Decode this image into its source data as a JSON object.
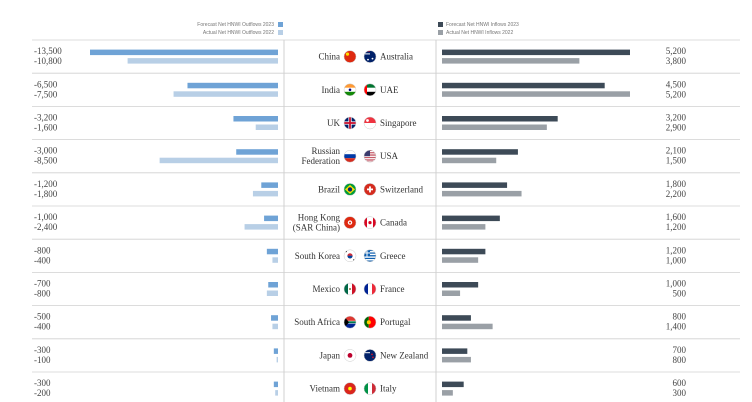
{
  "legend": {
    "outflow_2023": "Forecast Net HNWI Outflows 2023",
    "outflow_2022": "Actual Net HNWI Outflows 2022",
    "inflow_2023": "Forecast Net HNWI Inflows 2023",
    "inflow_2022": "Actual Net HNWI Inflows 2022"
  },
  "colors": {
    "outflow_2023": "#6fa3d6",
    "outflow_2022": "#b8cfe6",
    "inflow_2023": "#3d4a57",
    "inflow_2022": "#9aa0a6",
    "divider": "#d0d0d0"
  },
  "chart_data": {
    "type": "bar",
    "left": {
      "countries": [
        "China",
        "India",
        "UK",
        "Russian\nFederation",
        "Brazil",
        "Hong Kong\n(SAR China)",
        "South Korea",
        "Mexico",
        "South Africa",
        "Japan",
        "Vietnam"
      ],
      "flags": [
        "flag-china-icon",
        "flag-india-icon",
        "flag-uk-icon",
        "flag-russia-icon",
        "flag-brazil-icon",
        "flag-hongkong-icon",
        "flag-southkorea-icon",
        "flag-mexico-icon",
        "flag-southafrica-icon",
        "flag-japan-icon",
        "flag-vietnam-icon"
      ],
      "series": [
        {
          "name": "Forecast Net HNWI Outflows 2023",
          "values": [
            -13500,
            -6500,
            -3200,
            -3000,
            -1200,
            -1000,
            -800,
            -700,
            -500,
            -300,
            -300
          ]
        },
        {
          "name": "Actual Net HNWI Outflows 2022",
          "values": [
            -10800,
            -7500,
            -1600,
            -8500,
            -1800,
            -2400,
            -400,
            -800,
            -400,
            -100,
            -200
          ]
        }
      ],
      "labels_2023": [
        "-13,500",
        "-6,500",
        "-3,200",
        "-3,000",
        "-1,200",
        "-1,000",
        "-800",
        "-700",
        "-500",
        "-300",
        "-300"
      ],
      "labels_2022": [
        "-10,800",
        "-7,500",
        "-1,600",
        "-8,500",
        "-1,800",
        "-2,400",
        "-400",
        "-800",
        "-400",
        "-100",
        "-200"
      ]
    },
    "right": {
      "countries": [
        "Australia",
        "UAE",
        "Singapore",
        "USA",
        "Switzerland",
        "Canada",
        "Greece",
        "France",
        "Portugal",
        "New Zealand",
        "Italy"
      ],
      "flags": [
        "flag-australia-icon",
        "flag-uae-icon",
        "flag-singapore-icon",
        "flag-usa-icon",
        "flag-switzerland-icon",
        "flag-canada-icon",
        "flag-greece-icon",
        "flag-france-icon",
        "flag-portugal-icon",
        "flag-newzealand-icon",
        "flag-italy-icon"
      ],
      "series": [
        {
          "name": "Forecast Net HNWI Inflows 2023",
          "values": [
            5200,
            4500,
            3200,
            2100,
            1800,
            1600,
            1200,
            1000,
            800,
            700,
            600
          ]
        },
        {
          "name": "Actual Net HNWI Inflows 2022",
          "values": [
            3800,
            5200,
            2900,
            1500,
            2200,
            1200,
            1000,
            500,
            1400,
            800,
            300
          ]
        }
      ],
      "labels_2023": [
        "5,200",
        "4,500",
        "3,200",
        "2,100",
        "1,800",
        "1,600",
        "1,200",
        "1,000",
        "800",
        "700",
        "600"
      ],
      "labels_2022": [
        "3,800",
        "5,200",
        "2,900",
        "1,500",
        "2,200",
        "1,200",
        "1,000",
        "500",
        "1,400",
        "800",
        "300"
      ]
    }
  }
}
